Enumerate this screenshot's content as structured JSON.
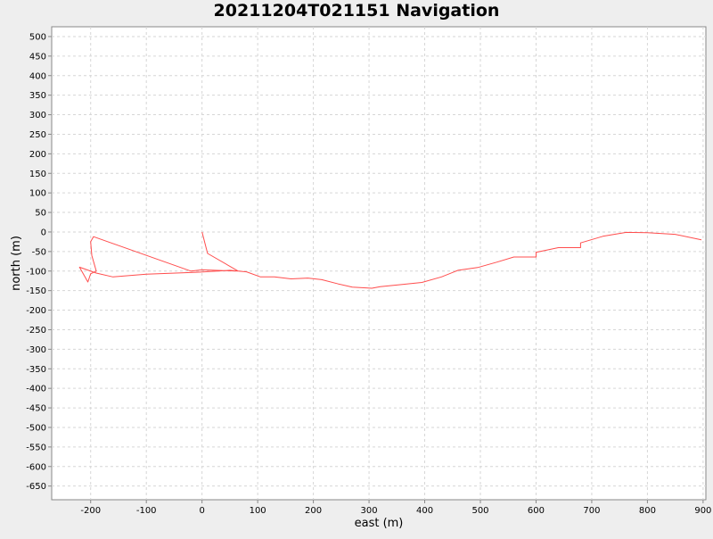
{
  "chart_data": {
    "type": "line",
    "title": "20211204T021151 Navigation",
    "xlabel": "east (m)",
    "ylabel": "north (m)",
    "xlim": [
      -270,
      905
    ],
    "ylim": [
      -685,
      525
    ],
    "x_ticks": [
      -200,
      -100,
      0,
      100,
      200,
      300,
      400,
      500,
      600,
      700,
      800,
      900
    ],
    "y_ticks": [
      500,
      450,
      400,
      350,
      300,
      250,
      200,
      150,
      100,
      50,
      0,
      -50,
      -100,
      -150,
      -200,
      -250,
      -300,
      -350,
      -400,
      -450,
      -500,
      -550,
      -600,
      -650
    ],
    "grid": true,
    "series": [
      {
        "color": "#ff4d4d",
        "points": [
          [
            0,
            0
          ],
          [
            10,
            -55
          ],
          [
            65,
            -100
          ],
          [
            0,
            -97
          ],
          [
            -20,
            -100
          ],
          [
            -195,
            -12
          ],
          [
            -200,
            -25
          ],
          [
            -198,
            -60
          ],
          [
            -190,
            -100
          ],
          [
            -200,
            -107
          ],
          [
            -205,
            -128
          ],
          [
            -220,
            -90
          ],
          [
            -190,
            -105
          ],
          [
            -160,
            -115
          ],
          [
            -100,
            -108
          ],
          [
            -10,
            -103
          ],
          [
            50,
            -98
          ],
          [
            65,
            -100
          ],
          [
            80,
            -102
          ],
          [
            105,
            -115
          ],
          [
            130,
            -115
          ],
          [
            160,
            -120
          ],
          [
            190,
            -118
          ],
          [
            215,
            -122
          ],
          [
            245,
            -133
          ],
          [
            270,
            -141
          ],
          [
            305,
            -144
          ],
          [
            320,
            -140
          ],
          [
            360,
            -134
          ],
          [
            395,
            -129
          ],
          [
            430,
            -115
          ],
          [
            460,
            -98
          ],
          [
            495,
            -91
          ],
          [
            530,
            -77
          ],
          [
            560,
            -64
          ],
          [
            600,
            -64
          ],
          [
            600,
            -52
          ],
          [
            640,
            -40
          ],
          [
            680,
            -40
          ],
          [
            680,
            -28
          ],
          [
            720,
            -11
          ],
          [
            762,
            -1
          ],
          [
            800,
            -2
          ],
          [
            850,
            -6
          ],
          [
            897,
            -20
          ]
        ]
      }
    ]
  }
}
